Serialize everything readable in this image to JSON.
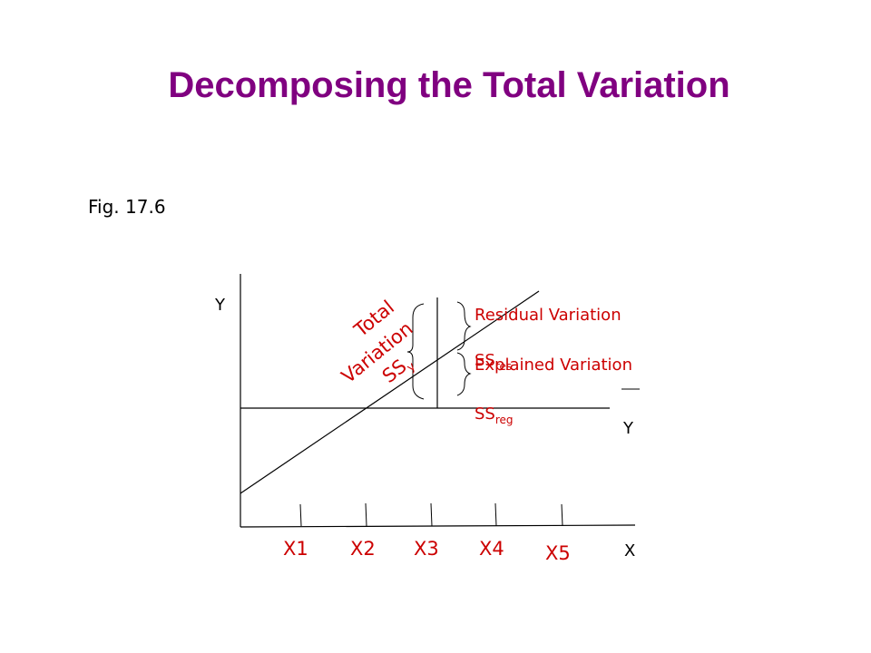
{
  "slide": {
    "title": "Decomposing the Total Variation",
    "figure_ref": "Fig. 17.6"
  },
  "diagram": {
    "y_axis_label": "Y",
    "x_axis_label": "X",
    "mean_line_label": "Y",
    "x_ticks": [
      "X1",
      "X2",
      "X3",
      "X4",
      "X5"
    ],
    "total_variation": {
      "line1": "Total",
      "line2": "Variation",
      "ss": "SS",
      "ss_sub": "y"
    },
    "residual": {
      "label": "Residual Variation",
      "ss": "SS",
      "ss_sub": "res"
    },
    "explained": {
      "label": "Explained Variation",
      "ss": "SS",
      "ss_sub": "reg"
    },
    "colors": {
      "title": "#800080",
      "annotation": "#cc0000",
      "lines": "#000000"
    }
  }
}
